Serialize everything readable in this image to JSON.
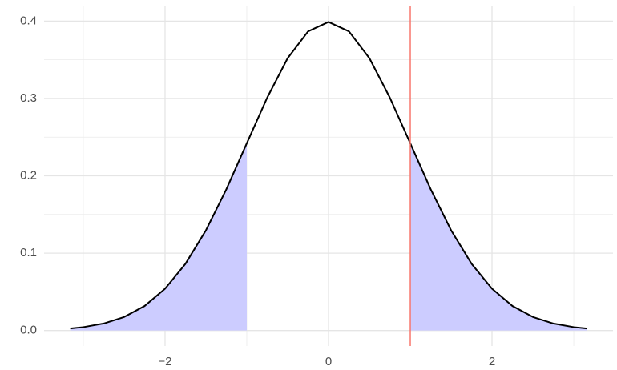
{
  "chart_data": {
    "type": "area",
    "x": [
      -3.16,
      -3,
      -2.75,
      -2.5,
      -2.25,
      -2,
      -1.75,
      -1.5,
      -1.25,
      -1,
      -0.75,
      -0.5,
      -0.25,
      0,
      0.25,
      0.5,
      0.75,
      1,
      1.25,
      1.5,
      1.75,
      2,
      2.25,
      2.5,
      2.75,
      3,
      3.16
    ],
    "values": [
      0.0027,
      0.0044,
      0.0091,
      0.0175,
      0.0317,
      0.054,
      0.0863,
      0.1295,
      0.1826,
      0.242,
      0.3011,
      0.3521,
      0.3867,
      0.3989,
      0.3867,
      0.3521,
      0.3011,
      0.242,
      0.1826,
      0.1295,
      0.0863,
      0.054,
      0.0317,
      0.0175,
      0.0091,
      0.0044,
      0.0027
    ],
    "color": "#000000",
    "shade": [
      -1,
      1
    ],
    "shade_color": "#ccccff",
    "vline": 1,
    "vline_color": "#f8766d",
    "xlim": [
      -3.48,
      3.48
    ],
    "ylim": [
      -0.02,
      0.419
    ],
    "xticks": [
      {
        "value": -2,
        "label": "−2"
      },
      0,
      2
    ],
    "x_minor_ticks": [
      -3,
      -1,
      1,
      3
    ],
    "yticks": [
      {
        "value": 0,
        "label": "0.0"
      },
      0.1,
      0.2,
      0.3,
      0.4
    ],
    "y_minor_ticks": [
      0.05,
      0.15,
      0.25,
      0.35
    ],
    "grid": true
  }
}
